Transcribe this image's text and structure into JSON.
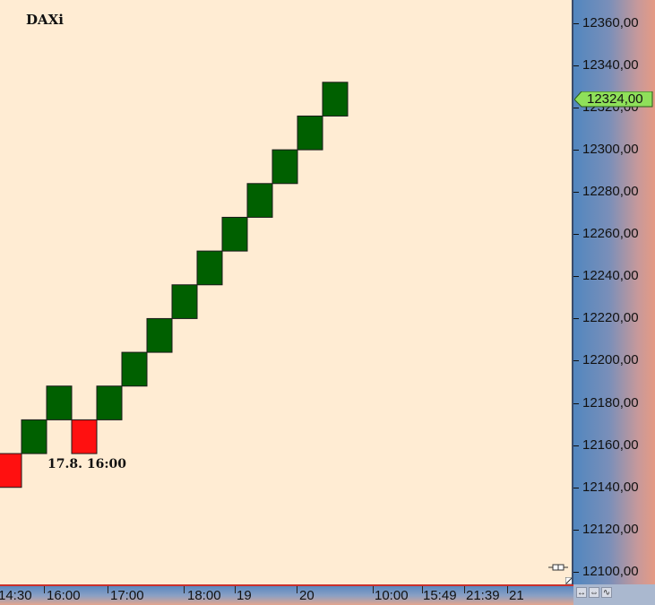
{
  "instrument": {
    "title": "DAXi"
  },
  "price_tag": {
    "value": "12324,00",
    "color": "#8fe05a"
  },
  "annotation": {
    "text": "17.8.  16:00"
  },
  "colors": {
    "up_box": "#006000",
    "down_box": "#ff1010",
    "background": "#ffecd3"
  },
  "chart_data": {
    "type": "bar",
    "subtype": "renko",
    "title": "DAXi",
    "box_size": 16,
    "ylim": [
      12094,
      12371
    ],
    "y_ticks": [
      "12100,00",
      "12120,00",
      "12140,00",
      "12160,00",
      "12180,00",
      "12200,00",
      "12220,00",
      "12240,00",
      "12260,00",
      "12280,00",
      "12300,00",
      "12320,00",
      "12340,00",
      "12360,00"
    ],
    "y_tick_values": [
      12100,
      12120,
      12140,
      12160,
      12180,
      12200,
      12220,
      12240,
      12260,
      12280,
      12300,
      12320,
      12340,
      12360
    ],
    "x_ticks": [
      "14:30",
      "16:00",
      "17:00",
      "18:00",
      "19",
      "20",
      "10:00",
      "15:49",
      "21:39",
      "21"
    ],
    "bricks": [
      {
        "low": 12140,
        "high": 12156,
        "direction": "down"
      },
      {
        "low": 12156,
        "high": 12172,
        "direction": "up"
      },
      {
        "low": 12172,
        "high": 12188,
        "direction": "up"
      },
      {
        "low": 12156,
        "high": 12172,
        "direction": "down"
      },
      {
        "low": 12172,
        "high": 12188,
        "direction": "up"
      },
      {
        "low": 12188,
        "high": 12204,
        "direction": "up"
      },
      {
        "low": 12204,
        "high": 12220,
        "direction": "up"
      },
      {
        "low": 12220,
        "high": 12236,
        "direction": "up"
      },
      {
        "low": 12236,
        "high": 12252,
        "direction": "up"
      },
      {
        "low": 12252,
        "high": 12268,
        "direction": "up"
      },
      {
        "low": 12268,
        "high": 12284,
        "direction": "up"
      },
      {
        "low": 12284,
        "high": 12300,
        "direction": "up"
      },
      {
        "low": 12300,
        "high": 12316,
        "direction": "up"
      },
      {
        "low": 12316,
        "high": 12332,
        "direction": "up"
      }
    ],
    "last_price": 12324,
    "legend": "none",
    "grid": false
  }
}
